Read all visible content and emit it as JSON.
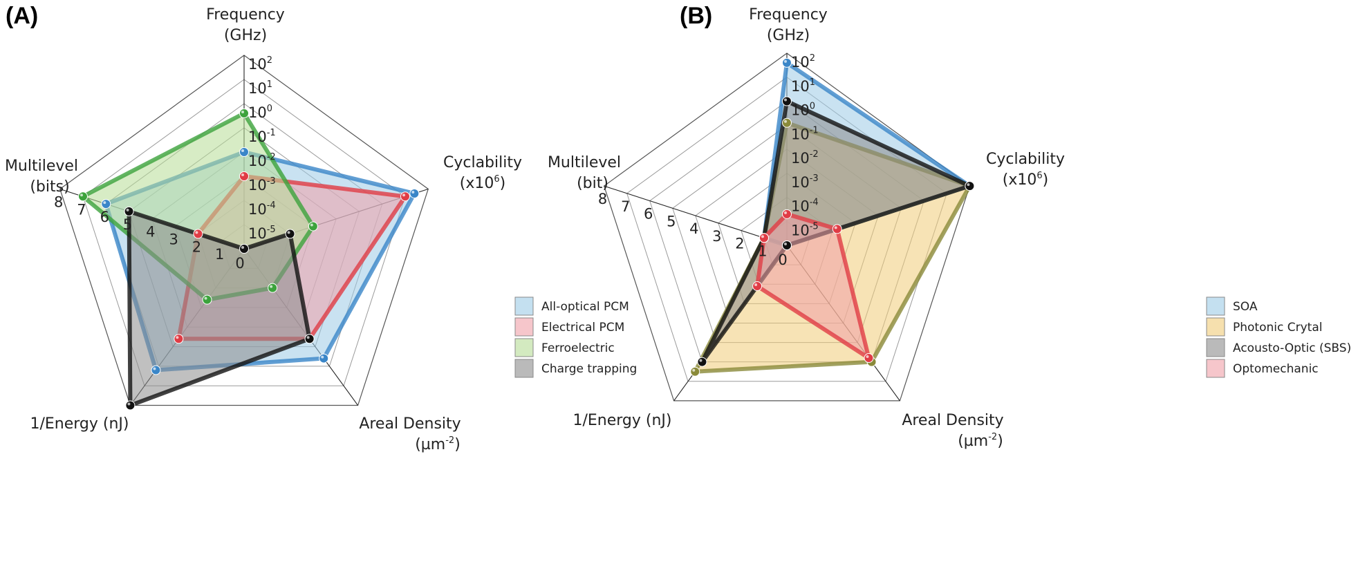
{
  "chart_data": [
    {
      "type": "radar",
      "panel_label": "(A)",
      "axes": [
        {
          "title": [
            "Frequency",
            "(GHz)"
          ],
          "scale": "log",
          "ticks": [
            "10^-5",
            "10^-4",
            "10^-3",
            "10^-2",
            "10^-1",
            "10^0",
            "10^1",
            "10^2"
          ]
        },
        {
          "title": [
            "Cyclability",
            "(x10^6)"
          ],
          "scale": "linear"
        },
        {
          "title": [
            "Areal Density",
            "(µm^-2)"
          ],
          "scale": "linear"
        },
        {
          "title": [
            "1/Energy (nJ)"
          ],
          "scale": "linear"
        },
        {
          "title": [
            "Multilevel",
            "(bits)"
          ],
          "scale": "linear",
          "ticks": [
            "0",
            "1",
            "2",
            "3",
            "4",
            "5",
            "6",
            "7",
            "8"
          ]
        }
      ],
      "range": [
        0,
        8
      ],
      "legend_position": "right",
      "series": [
        {
          "name": "All-optical PCM",
          "color": "#3a86c8",
          "fill": "#9ccbe6",
          "values": [
            4,
            7.4,
            5.6,
            6.2,
            6
          ]
        },
        {
          "name": "Electrical PCM",
          "color": "#e03c45",
          "fill": "#f0a0a8",
          "values": [
            3,
            7.0,
            4.6,
            4.6,
            2
          ]
        },
        {
          "name": "Ferroelectric",
          "color": "#3ca33c",
          "fill": "#b6dc96",
          "values": [
            5.6,
            3.0,
            2.0,
            2.6,
            7
          ]
        },
        {
          "name": "Charge trapping",
          "color": "#111111",
          "fill": "#8c8c8c",
          "values": [
            0,
            2.0,
            4.6,
            8.0,
            5
          ]
        }
      ]
    },
    {
      "type": "radar",
      "panel_label": "(B)",
      "axes": [
        {
          "title": [
            "Frequency",
            "(GHz)"
          ],
          "scale": "log",
          "ticks": [
            "10^-5",
            "10^-4",
            "10^-3",
            "10^-2",
            "10^-1",
            "10^0",
            "10^1",
            "10^2"
          ]
        },
        {
          "title": [
            "Cyclability",
            "(x10^6)"
          ],
          "scale": "linear"
        },
        {
          "title": [
            "Areal Density",
            "(µm^-2)"
          ],
          "scale": "linear"
        },
        {
          "title": [
            "1/Energy (nJ)"
          ],
          "scale": "linear"
        },
        {
          "title": [
            "Multilevel",
            "(bit)"
          ],
          "scale": "linear",
          "ticks": [
            "0",
            "1",
            "2",
            "3",
            "4",
            "5",
            "6",
            "7",
            "8"
          ]
        }
      ],
      "range": [
        0,
        8
      ],
      "legend_position": "right",
      "series": [
        {
          "name": "SOA",
          "color": "#3a86c8",
          "fill": "#9ccbe6",
          "values": [
            7.6,
            8,
            0,
            0,
            1
          ]
        },
        {
          "name": "Photonic Crytal",
          "color": "#8a8a3a",
          "fill": "#f0cc78",
          "values": [
            5.1,
            8,
            6.0,
            6.5,
            1
          ]
        },
        {
          "name": "Acousto-Optic (SBS)",
          "color": "#111111",
          "fill": "#8c8c8c",
          "values": [
            6,
            8,
            0,
            6.0,
            1
          ]
        },
        {
          "name": "Optomechanic",
          "color": "#e03c45",
          "fill": "#f0a0a8",
          "values": [
            1.3,
            2.2,
            5.8,
            2.1,
            1
          ]
        }
      ]
    }
  ]
}
